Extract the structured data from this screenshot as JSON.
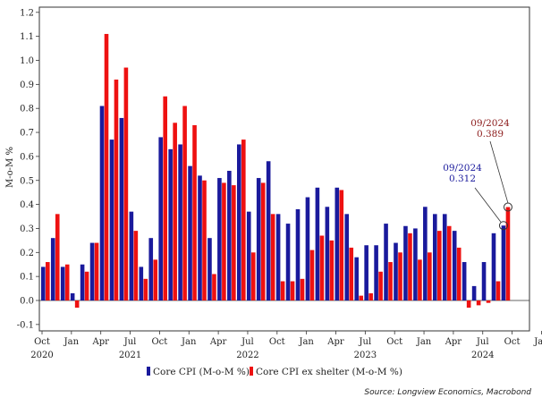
{
  "chart_data": {
    "type": "bar",
    "ylabel": "M-o-M %",
    "ylim": [
      -0.1,
      1.2
    ],
    "yticks": [
      -0.1,
      0.0,
      0.1,
      0.2,
      0.3,
      0.4,
      0.5,
      0.6,
      0.7,
      0.8,
      0.9,
      1.0,
      1.1,
      1.2
    ],
    "ytick_labels": [
      "-0.1",
      "0.0",
      "0.1",
      "0.2",
      "0.3",
      "0.4",
      "0.5",
      "0.6",
      "0.7",
      "0.8",
      "0.9",
      "1.0",
      "1.1",
      "1.2"
    ],
    "months": [
      "Oct 2020",
      "Nov 2020",
      "Dec 2020",
      "Jan 2021",
      "Feb 2021",
      "Mar 2021",
      "Apr 2021",
      "May 2021",
      "Jun 2021",
      "Jul 2021",
      "Aug 2021",
      "Sep 2021",
      "Oct 2021",
      "Nov 2021",
      "Dec 2021",
      "Jan 2022",
      "Feb 2022",
      "Mar 2022",
      "Apr 2022",
      "May 2022",
      "Jun 2022",
      "Jul 2022",
      "Aug 2022",
      "Sep 2022",
      "Oct 2022",
      "Nov 2022",
      "Dec 2022",
      "Jan 2023",
      "Feb 2023",
      "Mar 2023",
      "Apr 2023",
      "May 2023",
      "Jun 2023",
      "Jul 2023",
      "Aug 2023",
      "Sep 2023",
      "Oct 2023",
      "Nov 2023",
      "Dec 2023",
      "Jan 2024",
      "Feb 2024",
      "Mar 2024",
      "Apr 2024",
      "May 2024",
      "Jun 2024",
      "Jul 2024",
      "Aug 2024",
      "Sep 2024"
    ],
    "xtick_labels": [
      {
        "month": "Oct",
        "year": "2020",
        "index": 0
      },
      {
        "month": "Jan",
        "year": "",
        "index": 3
      },
      {
        "month": "Apr",
        "year": "",
        "index": 6
      },
      {
        "month": "Jul",
        "year": "2021",
        "index": 9
      },
      {
        "month": "Oct",
        "year": "",
        "index": 12
      },
      {
        "month": "Jan",
        "year": "",
        "index": 15
      },
      {
        "month": "Apr",
        "year": "",
        "index": 18
      },
      {
        "month": "Jul",
        "year": "2022",
        "index": 21
      },
      {
        "month": "Oct",
        "year": "",
        "index": 24
      },
      {
        "month": "Jan",
        "year": "",
        "index": 27
      },
      {
        "month": "Apr",
        "year": "",
        "index": 30
      },
      {
        "month": "Jul",
        "year": "2023",
        "index": 33
      },
      {
        "month": "Oct",
        "year": "",
        "index": 36
      },
      {
        "month": "Jan",
        "year": "",
        "index": 39
      },
      {
        "month": "Apr",
        "year": "",
        "index": 42
      },
      {
        "month": "Jul",
        "year": "2024",
        "index": 45
      },
      {
        "month": "Oct",
        "year": "",
        "index": 48
      },
      {
        "month": "Jan",
        "year": "",
        "index": 51
      }
    ],
    "series": [
      {
        "name": "Core CPI (M-o-M %)",
        "color": "#1a1a9c",
        "values": [
          0.14,
          0.26,
          0.14,
          0.03,
          0.15,
          0.24,
          0.81,
          0.67,
          0.76,
          0.37,
          0.14,
          0.26,
          0.68,
          0.63,
          0.65,
          0.56,
          0.52,
          0.26,
          0.51,
          0.54,
          0.65,
          0.37,
          0.51,
          0.58,
          0.36,
          0.32,
          0.38,
          0.43,
          0.47,
          0.39,
          0.47,
          0.36,
          0.18,
          0.23,
          0.23,
          0.32,
          0.24,
          0.31,
          0.3,
          0.39,
          0.36,
          0.36,
          0.29,
          0.16,
          0.06,
          0.16,
          0.28,
          0.312
        ]
      },
      {
        "name": "Core CPI ex shelter (M-o-M %)",
        "color": "#ee1111",
        "values": [
          0.16,
          0.36,
          0.15,
          -0.03,
          0.12,
          0.24,
          1.11,
          0.92,
          0.97,
          0.29,
          0.09,
          0.17,
          0.85,
          0.74,
          0.81,
          0.73,
          0.5,
          0.11,
          0.49,
          0.48,
          0.67,
          0.2,
          0.49,
          0.36,
          0.08,
          0.08,
          0.09,
          0.21,
          0.27,
          0.25,
          0.46,
          0.22,
          0.02,
          0.03,
          0.12,
          0.16,
          0.2,
          0.28,
          0.17,
          0.2,
          0.29,
          0.31,
          0.22,
          -0.03,
          -0.02,
          -0.01,
          0.08,
          0.389
        ]
      }
    ],
    "annotations": [
      {
        "date_label": "09/2024",
        "value_label": "0.312",
        "series": 0,
        "index": 47,
        "color": "#1a1a9c"
      },
      {
        "date_label": "09/2024",
        "value_label": "0.389",
        "series": 1,
        "index": 47,
        "color": "#8b1a1a"
      }
    ],
    "legend": {
      "placement": "bottom-center",
      "entries": [
        "Core CPI (M-o-M %)",
        "Core CPI ex shelter (M-o-M %)"
      ]
    },
    "source": "Source: Longview Economics, Macrobond",
    "grid": false
  }
}
